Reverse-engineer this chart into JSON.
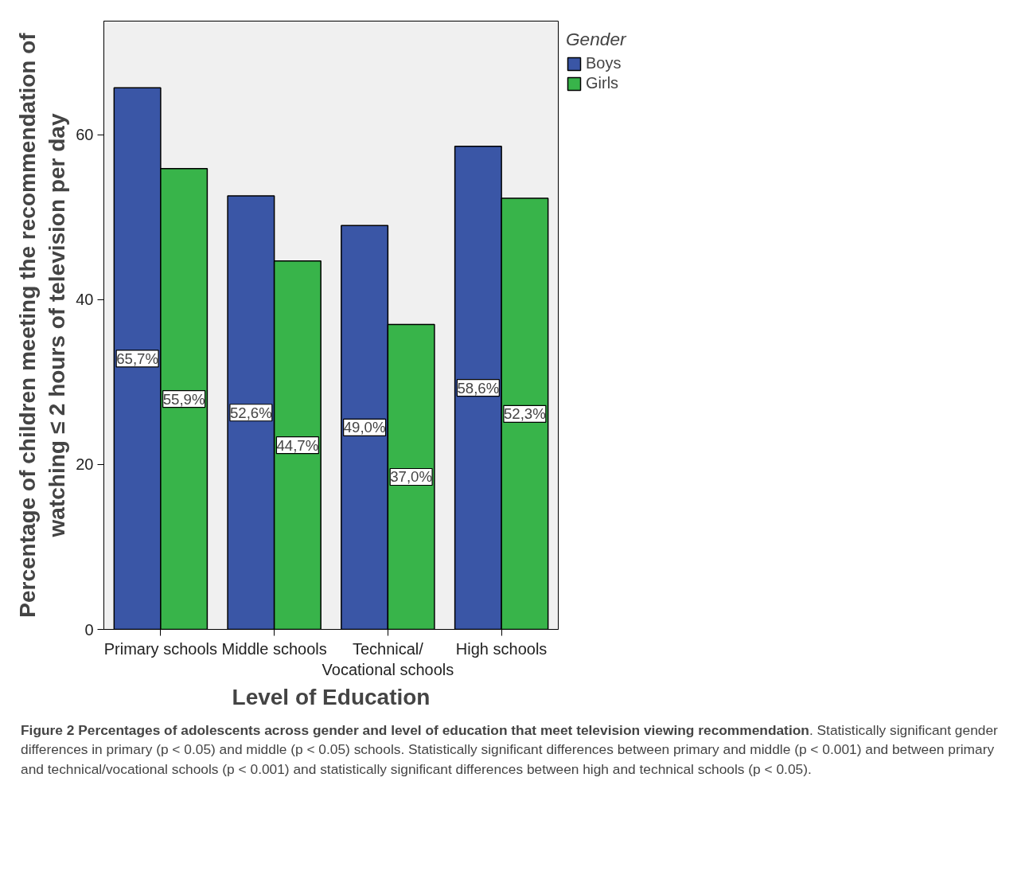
{
  "chart_data": {
    "type": "bar",
    "xlabel": "Level of Education",
    "ylabel": "Percentage of children meeting the recommendation of\nwatching ≤ 2 hours of television per day",
    "legend_title": "Gender",
    "categories": [
      "Primary schools",
      "Middle schools",
      "Technical/\nVocational schools",
      "High schools"
    ],
    "series": [
      {
        "name": "Boys",
        "color": "#3a56a6",
        "values": [
          65.7,
          52.6,
          49.0,
          58.6
        ],
        "value_labels": [
          "65,7%",
          "52,6%",
          "49,0%",
          "58,6%"
        ]
      },
      {
        "name": "Girls",
        "color": "#38b44a",
        "values": [
          55.9,
          44.7,
          37.0,
          52.3
        ],
        "value_labels": [
          "55,9%",
          "44,7%",
          "37,0%",
          "52,3%"
        ]
      }
    ],
    "ylim": [
      0,
      73.8
    ],
    "yticks": [
      0,
      20,
      40,
      60
    ],
    "grid": false,
    "legend": "right",
    "annotations": [
      "Figure 2 Percentages of adolescents across gender and level of education that meet television viewing recommendation",
      ". Statistically significant gender differences in primary (p < 0.05) and middle (p < 0.05) schools. Statistically significant differences between primary and middle (p < 0.001) and between primary and technical/vocational schools (p < 0.001) and statistically significant differences between high and technical schools (p < 0.05)."
    ]
  }
}
